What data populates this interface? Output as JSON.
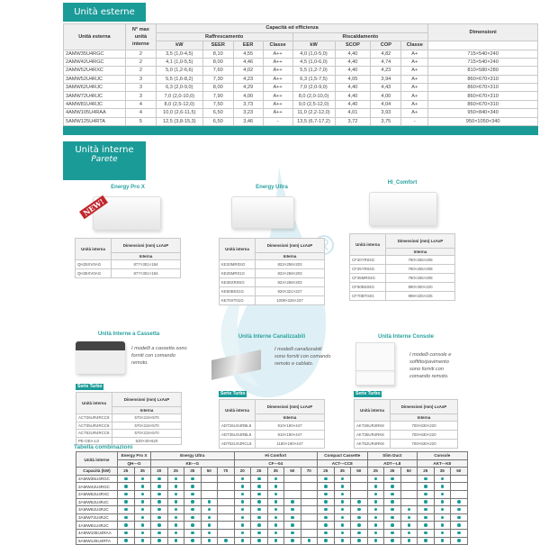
{
  "accent": "#1a9b98",
  "ext": {
    "title": "Unità esterne",
    "h": {
      "unit": "Unità esterna",
      "nmax": "N° max unità interne",
      "cap": "Capacità ed efficienza",
      "cool": "Raffrescamento",
      "heat": "Riscaldamento",
      "dim": "Dimensioni",
      "kw": "kW",
      "seer": "SEER",
      "eer": "EER",
      "classe": "Classe",
      "scop": "SCOP",
      "cop": "COP"
    },
    "rows": [
      [
        "2AMW35U4RGC",
        "2",
        "3,5 (1,0-4,5)",
        "8,10",
        "4,55",
        "A++",
        "4,0 (1,0-5,0)",
        "4,40",
        "4,82",
        "A+",
        "715×540×240"
      ],
      [
        "2AMW42U4RGC",
        "2",
        "4,1 (1,0-5,5)",
        "8,00",
        "4,46",
        "A++",
        "4,5 (1,0-6,0)",
        "4,40",
        "4,74",
        "A+",
        "715×540×240"
      ],
      [
        "2AMW52U4RXC",
        "2",
        "5,0 (1,2-6,6)",
        "7,60",
        "4,02",
        "A++",
        "5,5 (1,2-7,0)",
        "4,40",
        "4,23",
        "A+",
        "810×580×280"
      ],
      [
        "3AMW52U4RJC",
        "3",
        "5,5 (1,6-8,2)",
        "7,30",
        "4,23",
        "A++",
        "6,3 (1,5-7,5)",
        "4,05",
        "3,94",
        "A+",
        "860×670×310"
      ],
      [
        "3AMW62U4RJC",
        "3",
        "6,3 (2,0-9,0)",
        "8,00",
        "4,29",
        "A++",
        "7,0 (2,0-9,0)",
        "4,40",
        "4,43",
        "A+",
        "860×670×310"
      ],
      [
        "3AMW72U4RJC",
        "3",
        "7,0 (2,0-10,0)",
        "7,90",
        "4,00",
        "A++",
        "8,0 (2,0-10,0)",
        "4,40",
        "4,00",
        "A+",
        "860×670×310"
      ],
      [
        "4AMW81U4RJC",
        "4",
        "8,0 (2,5-12,0)",
        "7,50",
        "3,73",
        "A++",
        "9,0 (2,5-12,0)",
        "4,40",
        "4,04",
        "A+",
        "860×670×310"
      ],
      [
        "4AMW105U4RAA",
        "4",
        "10,0 (2,6-11,5)",
        "6,50",
        "3,23",
        "A++",
        "11,0 (2,2-12,0)",
        "4,01",
        "3,93",
        "A+",
        "950×840×340"
      ],
      [
        "5AMW125U4RTA",
        "5",
        "12,5 (3,8-15,3)",
        "6,50",
        "3,46",
        "-",
        "13,5 (6,7-17,2)",
        "3,72",
        "3,75",
        "-",
        "950×1050×340"
      ]
    ]
  },
  "int": {
    "title": "Unità interne",
    "subtitle": "Parete",
    "badge": "NEW!",
    "dimh": {
      "unit": "Unità interna",
      "dim": "Dimensioni (mm) LxAxP",
      "interna": "Interna"
    },
    "serie": "Serie Turbo",
    "groups": [
      {
        "title": "Energy Pro X",
        "rows": [
          [
            "QH25XV0AG",
            "877×301×194"
          ],
          [
            "QH35XV0AG",
            "877×301×194"
          ]
        ]
      },
      {
        "title": "Energy Ultra",
        "rows": [
          [
            "KE20MR0SG",
            "822×258×203"
          ],
          [
            "KE25MR01G",
            "822×258×203"
          ],
          [
            "KE35XR0SG",
            "822×258×203"
          ],
          [
            "KE50BS01G",
            "920×321×227"
          ],
          [
            "KE70XT01G",
            "1008×325×237"
          ]
        ]
      },
      {
        "title": "HI_Comfort",
        "rows": [
          [
            "CF20YR04G",
            "790×255×208"
          ],
          [
            "CF25YR04G",
            "790×255×208"
          ],
          [
            "CF35MR04G",
            "790×255×208"
          ],
          [
            "CF50BS04G",
            "890×300×220"
          ],
          [
            "CF70BT04G",
            "998×325×225"
          ]
        ]
      },
      {
        "title": "Unità Interne a Cassetta",
        "desc": "I modelli a cassetta sono forniti con comando remoto.",
        "rows": [
          [
            "ACT26UR4RCC8",
            "570×215×570"
          ],
          [
            "ACT35UR4RCC8",
            "570×215×570"
          ],
          [
            "ACT52UR4RCC8",
            "570×215×570"
          ],
          [
            "PE-GEA-L0",
            "620×40×620"
          ]
        ]
      },
      {
        "title": "Unità Interne Canalizzabili",
        "desc": "I modelli canalizzabili sono forniti con comando remoto e cablato.",
        "rows": [
          [
            "ADT26UX4RBL8",
            "910×190×447"
          ],
          [
            "ADT35UX4RBL8",
            "910×190×447"
          ],
          [
            "ADT52UX4RCL8",
            "1180×190×447"
          ]
        ]
      },
      {
        "title": "Unità Interne Console",
        "desc": "I modelli console e soffitto/pavimento sono forniti con comando remoto.",
        "rows": [
          [
            "AKT26UR4RK8",
            "700×630×220"
          ],
          [
            "AKT35UR4RK8",
            "700×630×220"
          ],
          [
            "AKT52UR4RK8",
            "700×630×220"
          ]
        ]
      }
    ]
  },
  "combo": {
    "title": "Tabella combinazioni",
    "unit_label": "Unità interne",
    "cap_label": "Capacità (kW)",
    "families": [
      {
        "name": "Energy Pro X",
        "code": "QH---G",
        "caps": [
          "25",
          "35"
        ]
      },
      {
        "name": "Energy Ultra",
        "code": "KE---G",
        "caps": [
          "20",
          "25",
          "35",
          "50",
          "70"
        ]
      },
      {
        "name": "Hi Comfort",
        "code": "CF---04",
        "caps": [
          "20",
          "25",
          "35",
          "50",
          "70"
        ]
      },
      {
        "name": "Compact Cassette",
        "code": "ACT---CC8",
        "caps": [
          "25",
          "35",
          "50"
        ]
      },
      {
        "name": "Slim Duct",
        "code": "ADT---L8",
        "caps": [
          "25",
          "35",
          "50"
        ]
      },
      {
        "name": "Console",
        "code": "AKT---K8",
        "caps": [
          "25",
          "35",
          "50"
        ]
      }
    ],
    "rows": [
      {
        "unit": "2AMW35U4RGC",
        "m": "111110011100110110110"
      },
      {
        "unit": "2AMW42U4RGC",
        "m": "111110011100110110110"
      },
      {
        "unit": "2AMW52U4RXC",
        "m": "111110011100110110110"
      },
      {
        "unit": "3AMW52U4RJC",
        "m": "111111011110111110111"
      },
      {
        "unit": "3AMW62U4RJC",
        "m": "111111011110111111111"
      },
      {
        "unit": "3AMW72U4RJC",
        "m": "111111011110111111111"
      },
      {
        "unit": "4AMW81U4RJC",
        "m": "111111011110111111111"
      },
      {
        "unit": "4AMW105U4RAA",
        "m": "111111011110111111111"
      },
      {
        "unit": "5AMW125U4RTA",
        "m": "111111111111111111111"
      }
    ]
  }
}
